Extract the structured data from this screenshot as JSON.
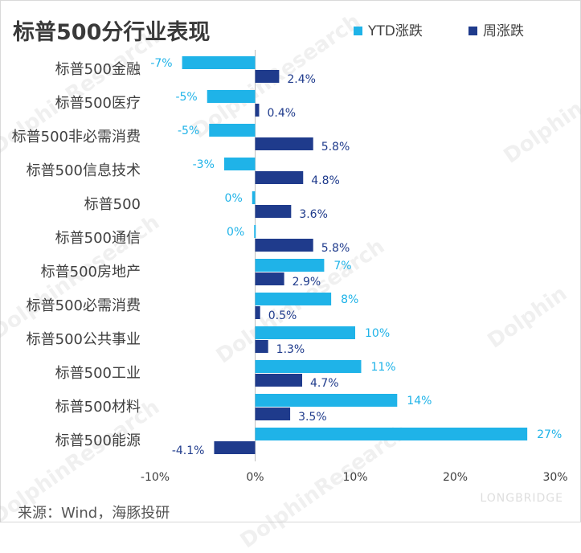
{
  "colors": {
    "ytd": "#1fb3e8",
    "week": "#1f3b8c",
    "axis": "#bfbfbf"
  },
  "watermarks": {
    "text1": "DolphinResearch",
    "text2": "Dolphin",
    "logo": "LONGBRIDGE"
  },
  "chart_data": {
    "type": "bar",
    "orientation": "horizontal",
    "title": "标普500分行业表现",
    "categories": [
      "标普500金融",
      "标普500医疗",
      "标普500非必需消费",
      "标普500信息技术",
      "标普500",
      "标普500通信",
      "标普500房地产",
      "标普500必需消费",
      "标普500公共事业",
      "标普500工业",
      "标普500材料",
      "标普500能源"
    ],
    "series": [
      {
        "name": "YTD涨跌",
        "values": [
          -7.3,
          -4.8,
          -4.6,
          -3.1,
          -0.3,
          -0.1,
          6.9,
          7.6,
          10.0,
          10.6,
          14.2,
          27.2
        ],
        "labels": [
          "-7%",
          "-5%",
          "-5%",
          "-3%",
          "0%",
          "0%",
          "7%",
          "8%",
          "10%",
          "11%",
          "14%",
          "27%"
        ]
      },
      {
        "name": "周涨跌",
        "values": [
          2.4,
          0.4,
          5.8,
          4.8,
          3.6,
          5.8,
          2.9,
          0.5,
          1.3,
          4.7,
          3.5,
          -4.1
        ],
        "labels": [
          "2.4%",
          "0.4%",
          "5.8%",
          "4.8%",
          "3.6%",
          "5.8%",
          "2.9%",
          "0.5%",
          "1.3%",
          "4.7%",
          "3.5%",
          "-4.1%"
        ]
      }
    ],
    "xlim": [
      -10,
      30
    ],
    "xticks": [
      -10,
      0,
      10,
      20,
      30
    ],
    "xtick_labels": [
      "-10%",
      "0%",
      "10%",
      "20%",
      "30%"
    ],
    "legend": "top-right",
    "grid": false
  },
  "footer": {
    "source": "来源：Wind，海豚投研"
  }
}
